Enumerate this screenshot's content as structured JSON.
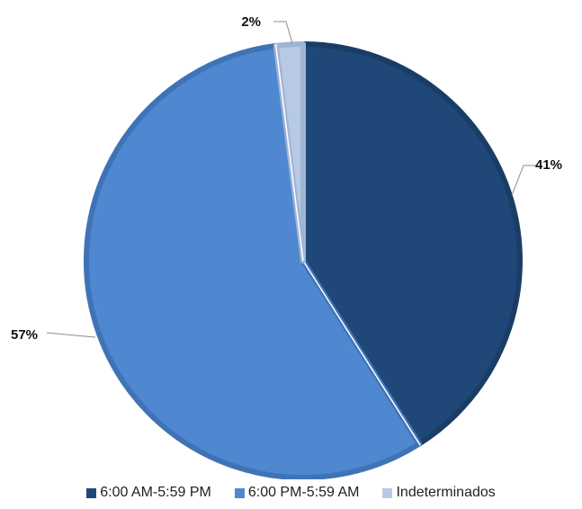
{
  "chart_data": {
    "type": "pie",
    "title": "",
    "start_angle_deg": 0,
    "direction": "clockwise",
    "legend_position": "bottom",
    "series": [
      {
        "name": "6:00 AM-5:59 PM",
        "value": 41,
        "label": "41%",
        "color": "#1f4878",
        "edge": "#1a3d66"
      },
      {
        "name": "6:00 PM-5:59 AM",
        "value": 57,
        "label": "57%",
        "color": "#4f88d0",
        "edge": "#3f73b6"
      },
      {
        "name": "Indeterminados",
        "value": 2,
        "label": "2%",
        "color": "#b7c9e5",
        "edge": "#9fb5d6"
      }
    ]
  }
}
